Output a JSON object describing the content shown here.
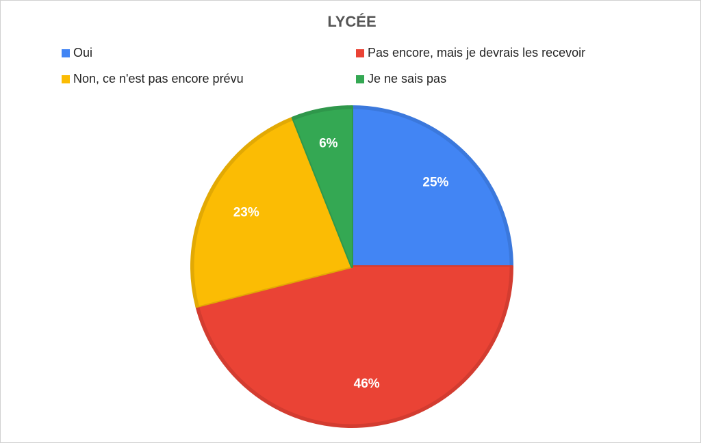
{
  "chart_data": {
    "type": "pie",
    "title": "LYCÉE",
    "categories": [
      "Oui",
      "Pas encore, mais je devrais les recevoir",
      "Non, ce n'est pas encore prévu",
      "Je ne sais pas"
    ],
    "values": [
      25,
      46,
      23,
      6
    ],
    "value_labels": [
      "25%",
      "46%",
      "23%",
      "6%"
    ],
    "colors": [
      "#4285f4",
      "#ea4335",
      "#fbbc04",
      "#34a853"
    ]
  }
}
